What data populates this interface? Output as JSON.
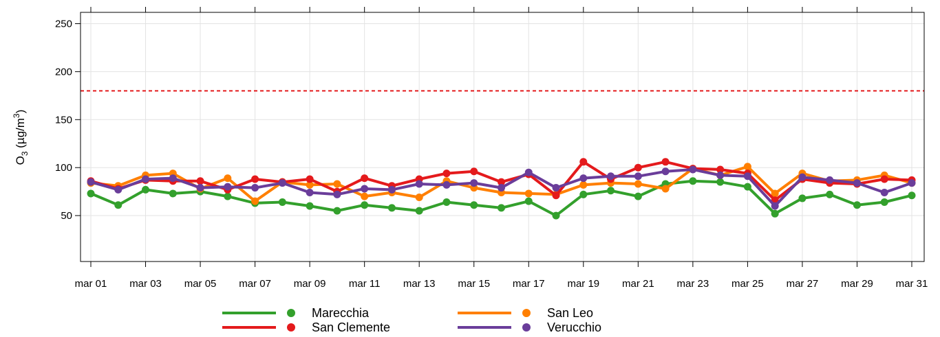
{
  "chart_data": {
    "type": "line",
    "ylabel": {
      "main": "O",
      "sub": "3",
      "unit_pre": " (µg/m",
      "sup": "3",
      "unit_post": ")"
    },
    "ylim": [
      0,
      260
    ],
    "yticks": [
      50,
      100,
      150,
      200,
      250
    ],
    "ytick_labels": [
      "50",
      "100",
      "150",
      "200",
      "250"
    ],
    "x": [
      "mar 01",
      "mar 02",
      "mar 03",
      "mar 04",
      "mar 05",
      "mar 06",
      "mar 07",
      "mar 08",
      "mar 09",
      "mar 10",
      "mar 11",
      "mar 12",
      "mar 13",
      "mar 14",
      "mar 15",
      "mar 16",
      "mar 17",
      "mar 18",
      "mar 19",
      "mar 20",
      "mar 21",
      "mar 22",
      "mar 23",
      "mar 24",
      "mar 25",
      "mar 26",
      "mar 27",
      "mar 28",
      "mar 29",
      "mar 30",
      "mar 31"
    ],
    "xtick_labels": [
      "mar 01",
      "mar 03",
      "mar 05",
      "mar 07",
      "mar 09",
      "mar 11",
      "mar 13",
      "mar 15",
      "mar 17",
      "mar 19",
      "mar 21",
      "mar 23",
      "mar 25",
      "mar 27",
      "mar 29",
      "mar 31"
    ],
    "threshold": {
      "value": 180,
      "color": "#e41a1c",
      "style": "dashed"
    },
    "grid": true,
    "legend_position": "bottom",
    "series": [
      {
        "name": "Marecchia",
        "color": "#33a02c",
        "values": [
          73,
          61,
          77,
          73,
          75,
          70,
          63,
          64,
          60,
          55,
          61,
          58,
          55,
          64,
          61,
          58,
          65,
          50,
          72,
          76,
          70,
          83,
          86,
          85,
          80,
          52,
          68,
          72,
          61,
          64,
          71
        ]
      },
      {
        "name": "San Leo",
        "color": "#ff7f00",
        "values": [
          84,
          81,
          92,
          94,
          78,
          89,
          65,
          85,
          82,
          83,
          70,
          74,
          69,
          86,
          79,
          74,
          73,
          72,
          82,
          84,
          83,
          78,
          99,
          92,
          101,
          73,
          94,
          86,
          87,
          92,
          84
        ]
      },
      {
        "name": "San Clemente",
        "color": "#e41a1c",
        "values": [
          86,
          78,
          87,
          86,
          86,
          77,
          88,
          85,
          88,
          75,
          89,
          81,
          88,
          94,
          96,
          85,
          93,
          71,
          106,
          88,
          100,
          106,
          99,
          98,
          94,
          66,
          88,
          84,
          83,
          88,
          87
        ]
      },
      {
        "name": "Verucchio",
        "color": "#6a3d9a",
        "values": [
          85,
          77,
          88,
          89,
          79,
          80,
          79,
          84,
          74,
          72,
          78,
          77,
          83,
          82,
          84,
          79,
          95,
          79,
          89,
          91,
          91,
          96,
          98,
          92,
          91,
          60,
          90,
          87,
          84,
          74,
          84
        ]
      }
    ]
  }
}
